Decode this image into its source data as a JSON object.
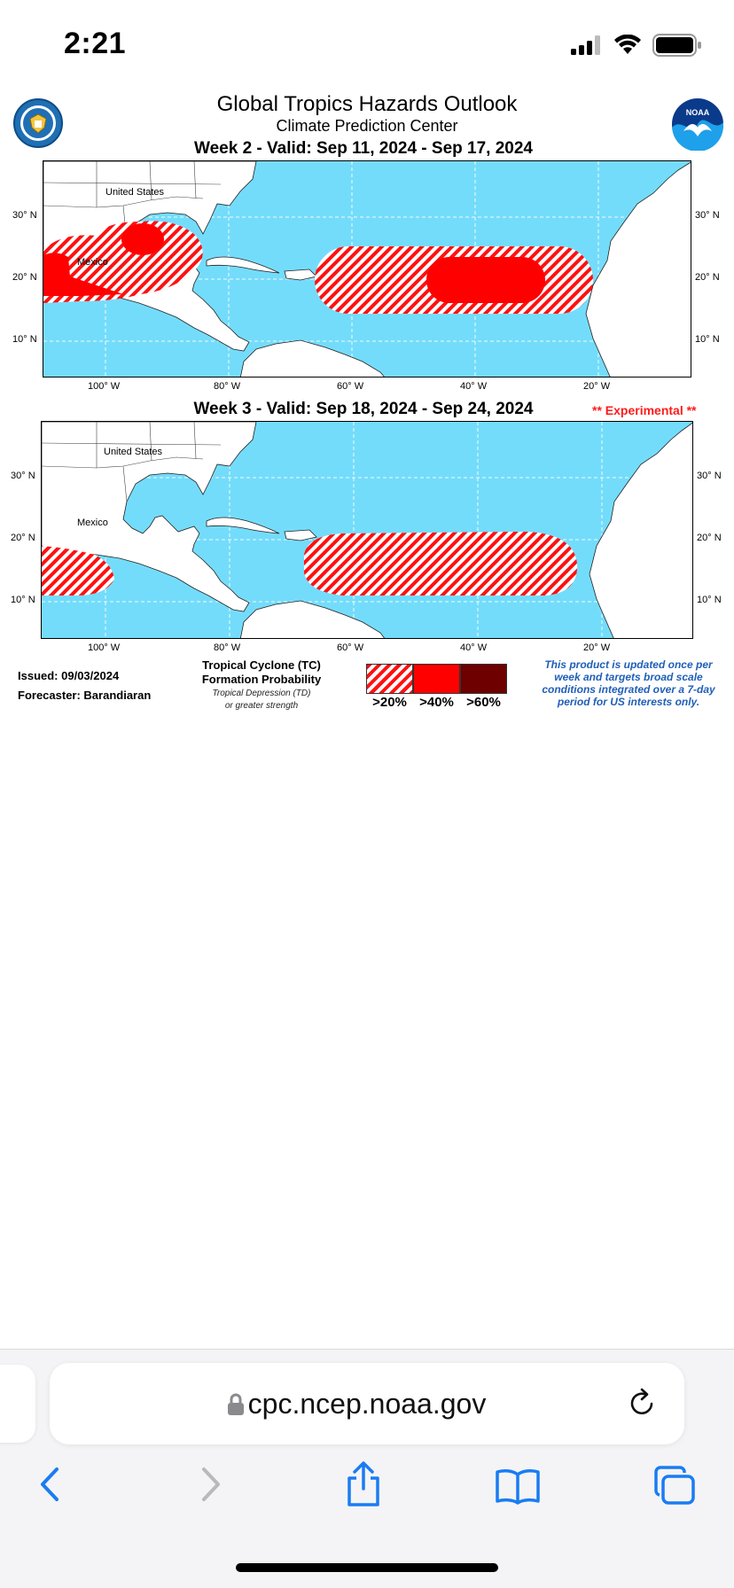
{
  "status": {
    "time": "2:21"
  },
  "product": {
    "title": "Global Tropics Hazards Outlook",
    "subtitle": "Climate Prediction Center",
    "week2_title": "Week 2 - Valid: Sep 11, 2024 - Sep 17, 2024",
    "week3_title": "Week 3 - Valid: Sep 18, 2024 - Sep 24, 2024",
    "experimental": "** Experimental **",
    "lat_labels": [
      "30° N",
      "20° N",
      "10° N"
    ],
    "lon_labels": [
      "100° W",
      "80° W",
      "60° W",
      "40° W",
      "20° W"
    ],
    "place_labels": {
      "us": "United States",
      "mexico": "Mexico"
    },
    "issued": "Issued: 09/03/2024",
    "forecaster": "Forecaster: Barandiaran",
    "legend": {
      "title_line1": "Tropical Cyclone (TC)",
      "title_line2": "Formation Probability",
      "note_line1": "Tropical Depression (TD)",
      "note_line2": "or greater strength",
      "categories": [
        {
          "label": ">20%",
          "color": "#ff0000",
          "pattern": "hatched"
        },
        {
          "label": ">40%",
          "color": "#ff0000",
          "pattern": "solid"
        },
        {
          "label": ">60%",
          "color": "#6e0000",
          "pattern": "solid"
        }
      ],
      "update_note": "This product is updated once per week and targets broad scale conditions integrated over a 7-day period for US interests only."
    },
    "colors": {
      "ocean": "#74dcfb",
      "land": "#ffffff",
      "hazard": "#ff0000",
      "note": "#1f5fb8"
    }
  },
  "browser": {
    "url": "cpc.ncep.noaa.gov",
    "icons": [
      "lock-icon",
      "reload-icon",
      "back-icon",
      "forward-icon",
      "share-icon",
      "bookmarks-icon",
      "tabs-icon"
    ]
  }
}
